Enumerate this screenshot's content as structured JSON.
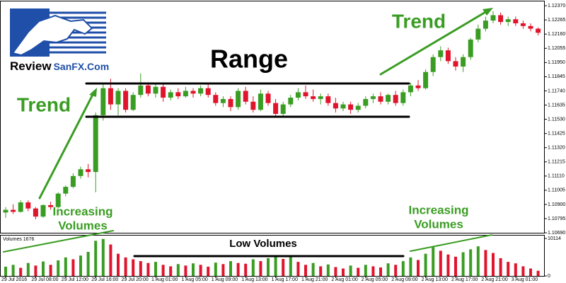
{
  "chart_data": {
    "type": "candlestick",
    "logo": {
      "part1": "Review",
      "part2": "SanFX.Com"
    },
    "annotations": {
      "range": "Range",
      "trend_left": "Trend",
      "trend_right": "Trend",
      "increasing_left": [
        "Increasing",
        "Volumes"
      ],
      "increasing_right": [
        "Increasing",
        "Volumes"
      ],
      "low_volumes": "Low Volumes"
    },
    "volume_label": "Volumes 1676",
    "up_color": "#3a9d23",
    "down_color": "#e0142c",
    "categories": [
      "29 Jul 2016",
      null,
      null,
      null,
      "29 Jul 08:00",
      null,
      null,
      null,
      "29 Jul 12:00",
      null,
      null,
      null,
      "29 Jul 16:00",
      null,
      null,
      null,
      "29 Jul 20:00",
      null,
      null,
      null,
      "1 Aug 01:00",
      null,
      null,
      null,
      "1 Aug 05:00",
      null,
      null,
      null,
      "1 Aug 09:00",
      null,
      null,
      null,
      "1 Aug 13:00",
      null,
      null,
      null,
      "1 Aug 17:00",
      null,
      null,
      null,
      "1 Aug 21:00",
      null,
      null,
      null,
      "2 Aug 01:00",
      null,
      null,
      null,
      "2 Aug 05:00",
      null,
      null,
      null,
      "2 Aug 09:00",
      null,
      null,
      null,
      "2 Aug 13:00",
      null,
      null,
      null,
      "2 Aug 17:00",
      null,
      null,
      null,
      "2 Aug 21:00",
      null,
      null,
      null,
      "3 Aug 01:00",
      null,
      null,
      null
    ],
    "open": [
      1.1084,
      1.1086,
      1.10845,
      1.10915,
      1.1087,
      1.1081,
      1.10895,
      1.1088,
      1.1098,
      1.1103,
      1.1111,
      1.1116,
      1.1114,
      1.1156,
      1.1176,
      1.1164,
      1.1174,
      1.116,
      1.1171,
      1.1178,
      1.1172,
      1.1177,
      1.1169,
      1.1173,
      1.117,
      1.1174,
      1.1172,
      1.1176,
      1.1171,
      1.1165,
      1.1168,
      1.1162,
      1.1174,
      1.1166,
      1.116,
      1.1172,
      1.1165,
      1.1157,
      1.1164,
      1.1169,
      1.1173,
      1.117,
      1.1168,
      1.117,
      1.1165,
      1.1161,
      1.1164,
      1.116,
      1.1163,
      1.1168,
      1.117,
      1.1166,
      1.1171,
      1.1165,
      1.1173,
      1.1178,
      1.1176,
      1.1188,
      1.1199,
      1.1204,
      1.1196,
      1.1192,
      1.1199,
      1.1212,
      1.122,
      1.1226,
      1.123,
      1.1225,
      1.1227,
      1.1224,
      1.1222,
      1.122
    ],
    "high": [
      1.1088,
      1.109,
      1.1093,
      1.1093,
      1.1088,
      1.109,
      1.1092,
      1.1099,
      1.1104,
      1.1113,
      1.1118,
      1.112,
      1.1158,
      1.1179,
      1.1183,
      1.1176,
      1.1176,
      1.1173,
      1.1187,
      1.118,
      1.1179,
      1.1179,
      1.1175,
      1.1176,
      1.1177,
      1.1176,
      1.1178,
      1.118,
      1.1173,
      1.117,
      1.117,
      1.1176,
      1.1177,
      1.117,
      1.1175,
      1.1174,
      1.1168,
      1.1166,
      1.1171,
      1.1176,
      1.1178,
      1.1175,
      1.1172,
      1.1172,
      1.1169,
      1.1166,
      1.1166,
      1.1165,
      1.117,
      1.1172,
      1.1173,
      1.1172,
      1.1174,
      1.1175,
      1.118,
      1.1182,
      1.119,
      1.1201,
      1.1207,
      1.1206,
      1.1199,
      1.1201,
      1.1213,
      1.1223,
      1.1229,
      1.1233,
      1.1232,
      1.1229,
      1.1229,
      1.1226,
      1.1224,
      1.1221
    ],
    "low": [
      1.108,
      1.1083,
      1.1084,
      1.1085,
      1.1079,
      1.108,
      1.1086,
      1.1087,
      1.1096,
      1.1102,
      1.1109,
      1.111,
      1.1099,
      1.1152,
      1.116,
      1.1156,
      1.1158,
      1.1159,
      1.1169,
      1.117,
      1.1169,
      1.1166,
      1.1167,
      1.1168,
      1.1169,
      1.1169,
      1.117,
      1.1169,
      1.1163,
      1.1162,
      1.1159,
      1.116,
      1.1164,
      1.1158,
      1.1159,
      1.1163,
      1.1155,
      1.1155,
      1.1162,
      1.1167,
      1.1168,
      1.1166,
      1.1164,
      1.1163,
      1.1158,
      1.1159,
      1.1157,
      1.1158,
      1.1161,
      1.1165,
      1.1164,
      1.1164,
      1.1163,
      1.1163,
      1.117,
      1.1174,
      1.1175,
      1.1185,
      1.1196,
      1.1194,
      1.1189,
      1.1188,
      1.1197,
      1.121,
      1.1218,
      1.1224,
      1.1223,
      1.1222,
      1.1222,
      1.122,
      1.1218,
      1.1215
    ],
    "close": [
      1.1086,
      1.10845,
      1.10915,
      1.1087,
      1.1081,
      1.10895,
      1.1088,
      1.1098,
      1.1103,
      1.1111,
      1.1116,
      1.1114,
      1.1156,
      1.1176,
      1.1164,
      1.1174,
      1.116,
      1.1171,
      1.1178,
      1.1172,
      1.1177,
      1.1169,
      1.1173,
      1.117,
      1.1174,
      1.1172,
      1.1176,
      1.1171,
      1.1165,
      1.1168,
      1.1162,
      1.1174,
      1.1166,
      1.116,
      1.1172,
      1.1165,
      1.1157,
      1.1164,
      1.1169,
      1.1173,
      1.117,
      1.1168,
      1.117,
      1.1165,
      1.1161,
      1.1164,
      1.116,
      1.1163,
      1.1168,
      1.117,
      1.1166,
      1.1171,
      1.1165,
      1.1173,
      1.1178,
      1.1176,
      1.1188,
      1.1199,
      1.1204,
      1.1196,
      1.1192,
      1.1199,
      1.1212,
      1.122,
      1.1226,
      1.123,
      1.1225,
      1.1227,
      1.1224,
      1.1222,
      1.122,
      1.1217
    ],
    "volume": [
      2500,
      3000,
      2200,
      3500,
      2800,
      3900,
      3000,
      4200,
      5000,
      4500,
      5500,
      6500,
      9500,
      10000,
      8500,
      6000,
      5000,
      4500,
      4000,
      3500,
      3800,
      3000,
      2600,
      3200,
      2800,
      3400,
      3000,
      2500,
      3600,
      3200,
      4000,
      3500,
      3300,
      4500,
      4000,
      4800,
      5200,
      4600,
      5400,
      3800,
      3000,
      3500,
      2600,
      3100,
      2400,
      2000,
      2800,
      2200,
      3000,
      2600,
      2300,
      3400,
      3000,
      4000,
      5000,
      4300,
      6000,
      7800,
      6800,
      5800,
      5200,
      6400,
      7200,
      8000,
      7000,
      6200,
      4800,
      3800,
      3400,
      2600,
      2000,
      1400
    ],
    "ylim": [
      1.10685,
      1.12402
    ],
    "yticks": [
      {
        "value": 1.1237,
        "label": "1.12370"
      },
      {
        "value": 1.12265,
        "label": "1.12265"
      },
      {
        "value": 1.1216,
        "label": "1.12160"
      },
      {
        "value": 1.12055,
        "label": "1.12055"
      },
      {
        "value": 1.1195,
        "label": "1.11950"
      },
      {
        "value": 1.11845,
        "label": "1.11845"
      },
      {
        "value": 1.1174,
        "label": "1.11740"
      },
      {
        "value": 1.11635,
        "label": "1.11635"
      },
      {
        "value": 1.1153,
        "label": "1.11530"
      },
      {
        "value": 1.11425,
        "label": "1.11425"
      },
      {
        "value": 1.1132,
        "label": "1.11320"
      },
      {
        "value": 1.11215,
        "label": "1.11215"
      },
      {
        "value": 1.1111,
        "label": "1.11110"
      },
      {
        "value": 1.11005,
        "label": "1.11005"
      },
      {
        "value": 1.109,
        "label": "1.10900"
      },
      {
        "value": 1.10795,
        "label": "1.10795"
      },
      {
        "value": 1.1069,
        "label": "1.10690"
      }
    ],
    "volume_ylim": [
      0,
      10900
    ],
    "volume_yticks": [
      0,
      10114
    ]
  }
}
